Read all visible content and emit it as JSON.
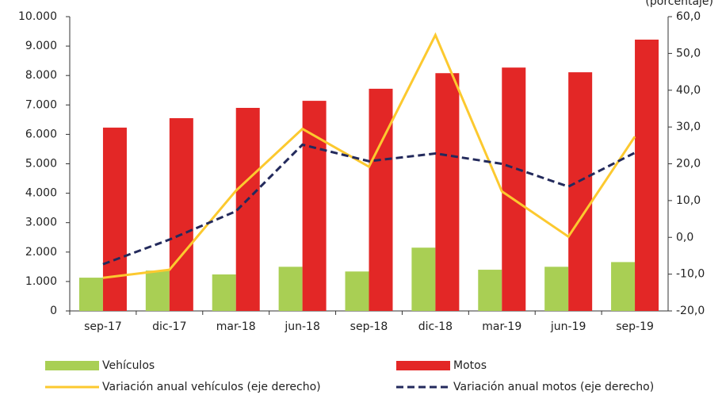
{
  "chart_data": {
    "type": "bar_line",
    "subtitle": "(porcentaje)",
    "categories": [
      "sep-17",
      "dic-17",
      "mar-18",
      "jun-18",
      "sep-18",
      "dic-18",
      "mar-19",
      "jun-19",
      "sep-19"
    ],
    "series": [
      {
        "name": "Vehículos",
        "type": "bar",
        "color": "#a9cf54",
        "values": [
          1130,
          1370,
          1240,
          1500,
          1340,
          2150,
          1400,
          1500,
          1660
        ]
      },
      {
        "name": "Motos",
        "type": "bar",
        "color": "#e32726",
        "values": [
          6230,
          6550,
          6900,
          7140,
          7550,
          8080,
          8270,
          8110,
          9220
        ]
      },
      {
        "name": "Variación anual vehículos (eje derecho)",
        "type": "line",
        "axis": "y2",
        "color": "#fcc92f",
        "dashed": false,
        "values": [
          -11.0,
          -8.8,
          12.7,
          29.5,
          19.2,
          55.0,
          12.5,
          0.2,
          27.4
        ]
      },
      {
        "name": "Variación anual motos (eje derecho)",
        "type": "line",
        "axis": "y2",
        "color": "#232a5c",
        "dashed": true,
        "values": [
          -7.3,
          -0.6,
          7.1,
          25.2,
          20.7,
          22.8,
          20.0,
          13.8,
          23.0
        ]
      }
    ],
    "ylim": [
      0,
      10000
    ],
    "yticks": [
      0,
      {
        "value": 1000,
        "label": "1.000"
      },
      {
        "value": 2000,
        "label": "2.000"
      },
      {
        "value": 3000,
        "label": "3.000"
      },
      {
        "value": 4000,
        "label": "4.000"
      },
      {
        "value": 5000,
        "label": "5.000"
      },
      {
        "value": 6000,
        "label": "6.000"
      },
      {
        "value": 7000,
        "label": "7.000"
      },
      {
        "value": 8000,
        "label": "8.000"
      },
      {
        "value": 9000,
        "label": "9.000"
      },
      {
        "value": 10000,
        "label": "10.000"
      }
    ],
    "y2lim": [
      -20,
      60
    ],
    "y2ticks": [
      {
        "value": -20,
        "label": "-20,0"
      },
      {
        "value": -10,
        "label": "-10,0"
      },
      {
        "value": 0,
        "label": "0,0"
      },
      {
        "value": 10,
        "label": "10,0"
      },
      {
        "value": 20,
        "label": "20,0"
      },
      {
        "value": 30,
        "label": "30,0"
      },
      {
        "value": 40,
        "label": "40,0"
      },
      {
        "value": 50,
        "label": "50,0"
      },
      {
        "value": 60,
        "label": "60,0"
      }
    ],
    "grid": false
  }
}
